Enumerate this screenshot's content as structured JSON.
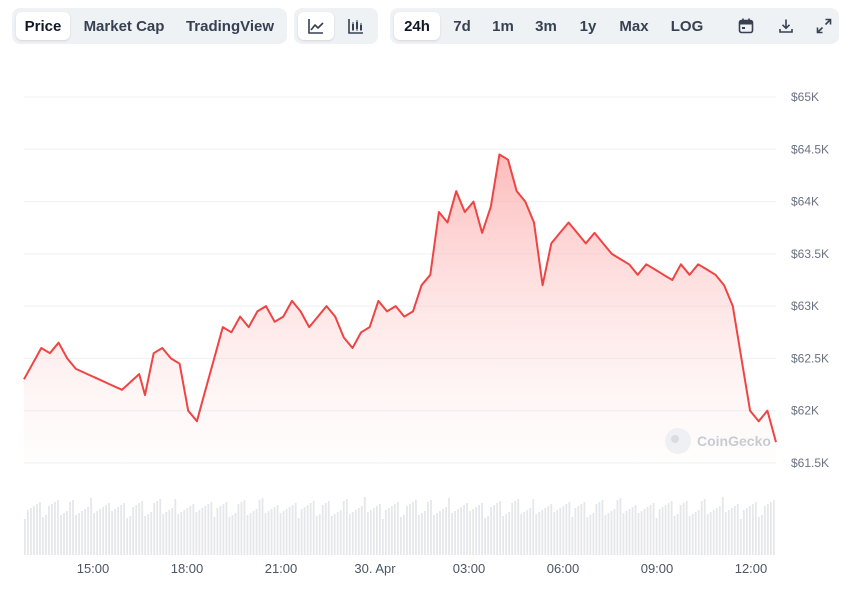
{
  "toolbar": {
    "type_tabs": [
      "Price",
      "Market Cap",
      "TradingView"
    ],
    "active_type": "Price",
    "style_icons": [
      "line-chart-icon",
      "candlestick-chart-icon"
    ],
    "active_style": "line-chart-icon",
    "range_tabs": [
      "24h",
      "7d",
      "1m",
      "3m",
      "1y",
      "Max",
      "LOG"
    ],
    "active_range": "24h",
    "tool_icons": [
      "calendar-icon",
      "download-icon",
      "expand-icon"
    ]
  },
  "watermark": "CoinGecko",
  "colors": {
    "line": "#ef4444",
    "fill_top": "#fca5a5",
    "grid": "#eef0f3",
    "volume": "#e5e7eb",
    "toolbar_bg": "#eff2f5"
  },
  "chart_data": {
    "type": "line",
    "series": [
      {
        "values": [
          62300,
          62600,
          62550,
          62650,
          62500,
          62400,
          62350,
          62300,
          62250,
          62200,
          62300,
          62350,
          62150,
          62550,
          62600,
          62500,
          62450,
          62000,
          61900,
          62200,
          62500,
          62800,
          62750,
          62900,
          62800,
          62950,
          63000,
          62850,
          62900,
          63050,
          62950,
          62800,
          62900,
          63000,
          62900,
          62700,
          62600,
          62750,
          62800,
          63050,
          62950,
          63000,
          62900,
          62950,
          63200,
          63300,
          63900,
          63800,
          64100,
          63900,
          64000,
          63700,
          63950,
          64450,
          64400,
          64100,
          64000,
          63800,
          63200,
          63600,
          63700,
          63800,
          63700,
          63600,
          63700,
          63600,
          63500,
          63450,
          63400,
          63300,
          63400,
          63350,
          63300,
          63250,
          63400,
          63300,
          63400,
          63350,
          63300,
          63200,
          63000,
          62500,
          62000,
          61900,
          62000,
          61700
        ],
        "x_minutes": [
          0,
          30,
          45,
          60,
          75,
          90,
          110,
          130,
          150,
          170,
          190,
          200,
          210,
          225,
          240,
          255,
          270,
          285,
          300,
          315,
          330,
          345,
          360,
          375,
          390,
          405,
          420,
          435,
          450,
          465,
          480,
          495,
          510,
          525,
          540,
          555,
          570,
          585,
          600,
          615,
          630,
          645,
          660,
          675,
          690,
          705,
          720,
          735,
          750,
          765,
          780,
          795,
          810,
          825,
          840,
          855,
          870,
          885,
          900,
          915,
          930,
          945,
          960,
          975,
          990,
          1005,
          1020,
          1035,
          1050,
          1065,
          1080,
          1095,
          1110,
          1125,
          1140,
          1155,
          1170,
          1185,
          1200,
          1215,
          1230,
          1245,
          1260,
          1275,
          1290,
          1305
        ]
      }
    ],
    "x_tick_labels": [
      "15:00",
      "18:00",
      "21:00",
      "30. Apr",
      "03:00",
      "06:00",
      "09:00",
      "12:00"
    ],
    "y_tick_labels": [
      "$65K",
      "$64.5K",
      "$64K",
      "$63.5K",
      "$63K",
      "$62.5K",
      "$62K",
      "$61.5K"
    ],
    "y_ticks": [
      65000,
      64500,
      64000,
      63500,
      63000,
      62500,
      62000,
      61500
    ],
    "ylim": [
      61500,
      65000
    ],
    "grid": true,
    "volume_bars": true
  }
}
